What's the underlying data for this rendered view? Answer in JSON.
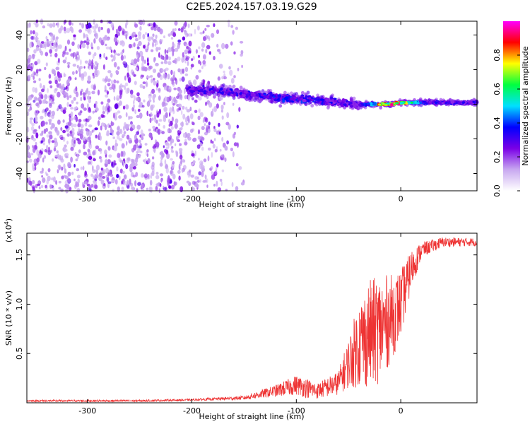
{
  "title": "C2E5.2024.157.03.19.G29",
  "chart_data": [
    {
      "type": "heatmap",
      "xlabel": "Height of straight line (km)",
      "ylabel": "Frequency (Hz)",
      "xlim": [
        -358,
        73
      ],
      "ylim": [
        -50,
        48
      ],
      "x_ticks": [
        -300,
        -200,
        -100,
        0
      ],
      "x_tick_labels": [
        "-300",
        "-200",
        "-100",
        "0"
      ],
      "y_ticks": [
        -40,
        -20,
        0,
        20,
        40
      ],
      "y_tick_labels": [
        "-40",
        "-20",
        "0",
        "20",
        "40"
      ],
      "colorbar": {
        "label": "Normalized spectral amplitude",
        "range": [
          0,
          1
        ],
        "ticks": [
          0.0,
          0.2,
          0.4,
          0.6,
          0.8
        ],
        "tick_labels": [
          "0.0",
          "0.2",
          "0.4",
          "0.6",
          "0.8"
        ],
        "colors": [
          "#ffffff",
          "#c8a8f0",
          "#7a00e6",
          "#0000ff",
          "#00e0ff",
          "#00ff40",
          "#ffff00",
          "#ff0000",
          "#ff00ff"
        ]
      },
      "noise_region_x": [
        -358,
        -150
      ],
      "signal_track": {
        "x": [
          -205,
          -180,
          -150,
          -120,
          -90,
          -60,
          -40,
          -30,
          -20,
          -10,
          0,
          20,
          40,
          73
        ],
        "y": [
          8,
          8,
          6,
          4,
          3,
          1,
          0,
          0,
          0,
          0,
          1,
          1,
          1,
          1
        ],
        "peak_amplitude": [
          0.3,
          0.35,
          0.35,
          0.4,
          0.4,
          0.35,
          0.3,
          0.5,
          0.9,
          0.95,
          0.9,
          0.4,
          0.35,
          0.35
        ]
      },
      "grid": false
    },
    {
      "type": "line",
      "xlabel": "Height of straight line (km)",
      "ylabel": "SNR (10 * v/v)",
      "y_multiplier": "(x10",
      "y_multiplier_exp": "4",
      "y_multiplier_close": ")",
      "xlim": [
        -358,
        73
      ],
      "ylim": [
        0,
        1.72
      ],
      "x_ticks": [
        -300,
        -200,
        -100,
        0
      ],
      "x_tick_labels": [
        "-300",
        "-200",
        "-100",
        "0"
      ],
      "y_ticks": [
        0.5,
        1.0,
        1.5
      ],
      "y_tick_labels": [
        "0.5",
        "1.0",
        "1.5"
      ],
      "color": "#ee3333",
      "envelope": {
        "x": [
          -358,
          -250,
          -200,
          -150,
          -120,
          -100,
          -90,
          -80,
          -60,
          -50,
          -40,
          -30,
          -20,
          -10,
          0,
          10,
          20,
          40,
          73
        ],
        "mean": [
          0.02,
          0.02,
          0.03,
          0.05,
          0.12,
          0.18,
          0.15,
          0.12,
          0.2,
          0.4,
          0.6,
          0.7,
          0.75,
          0.85,
          1.0,
          1.35,
          1.55,
          1.63,
          1.63
        ],
        "spread": [
          0.01,
          0.01,
          0.01,
          0.02,
          0.06,
          0.1,
          0.1,
          0.08,
          0.12,
          0.25,
          0.45,
          0.55,
          0.55,
          0.45,
          0.35,
          0.2,
          0.08,
          0.05,
          0.04
        ]
      },
      "grid": false
    }
  ]
}
